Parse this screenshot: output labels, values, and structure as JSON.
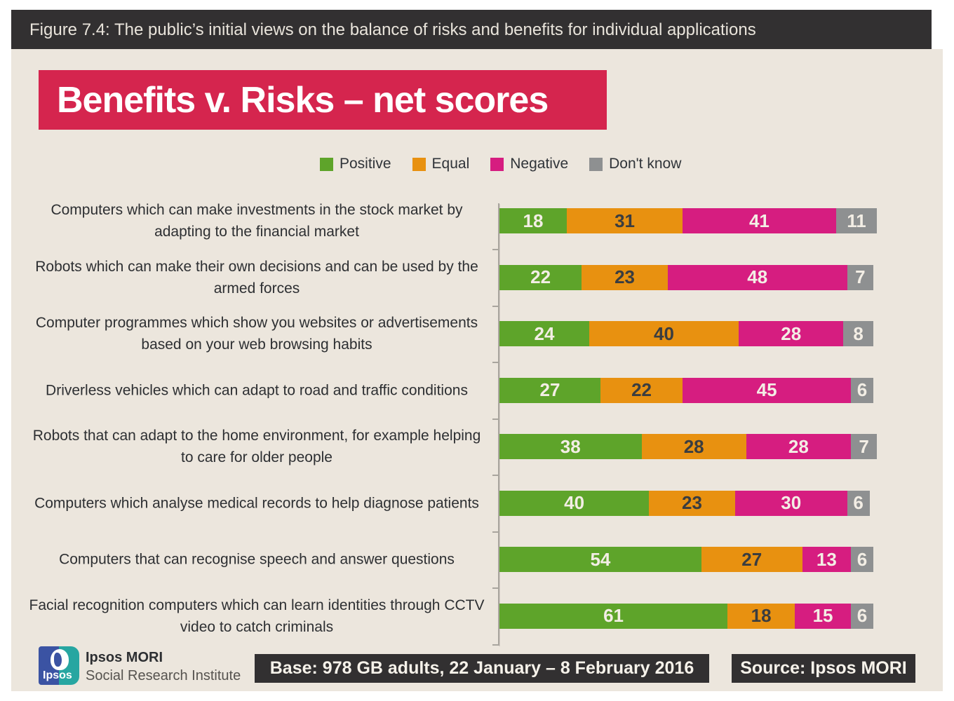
{
  "figure_header": "Figure 7.4: The public’s initial views on the balance of risks and benefits for individual applications",
  "title": "Benefits v. Risks – net scores",
  "chart_data": {
    "type": "bar",
    "orientation": "horizontal",
    "stacked": true,
    "title": "Benefits v. Risks – net scores",
    "value_range": [
      0,
      100
    ],
    "legend_position": "top",
    "grid": false,
    "categories": [
      "Computers which can make investments in the stock market by adapting to the financial market",
      "Robots which can make their own decisions and can be used by the armed forces",
      "Computer programmes which show you websites or advertisements based on your web browsing habits",
      "Driverless vehicles which can adapt to road and traffic conditions",
      "Robots that can adapt to the home environment, for example helping to care for older people",
      "Computers which analyse medical records to help diagnose patients",
      "Computers that can recognise speech and answer questions",
      "Facial recognition computers which can learn identities through CCTV video to catch criminals"
    ],
    "series": [
      {
        "name": "Positive",
        "color": "#5ea42a",
        "values": [
          18,
          22,
          24,
          27,
          38,
          40,
          54,
          61
        ]
      },
      {
        "name": "Equal",
        "color": "#e89110",
        "values": [
          31,
          23,
          40,
          22,
          28,
          23,
          27,
          18
        ]
      },
      {
        "name": "Negative",
        "color": "#d61d80",
        "values": [
          41,
          48,
          28,
          45,
          28,
          30,
          13,
          15
        ]
      },
      {
        "name": "Don't know",
        "color": "#8e9091",
        "values": [
          11,
          7,
          8,
          6,
          7,
          6,
          6,
          6
        ]
      }
    ]
  },
  "footer": {
    "logo_word": "Ipsos",
    "org_name": "Ipsos MORI",
    "org_dept": "Social Research Institute",
    "base_note": "Base: 978 GB adults, 22 January – 8 February 2016",
    "source_note": "Source: Ipsos MORI"
  },
  "colors": {
    "header_bg": "#323031",
    "panel_bg": "#ece6dd",
    "title_bg": "#d5254e",
    "axis": "#a9a59e",
    "value_text_light": "#f3eee5",
    "value_text_dark": "#3a3d40",
    "label_text": "#2d2f32"
  }
}
